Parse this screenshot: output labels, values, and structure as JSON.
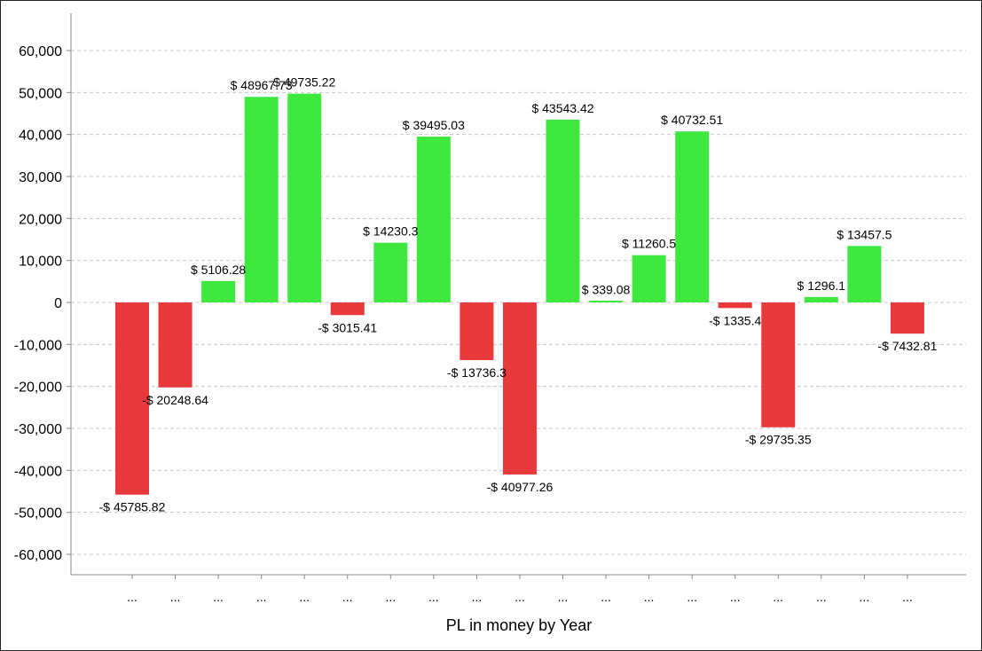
{
  "chart_data": {
    "type": "bar",
    "title": "",
    "xlabel": "PL in money by Year",
    "ylabel": "",
    "ylim": [
      -65000,
      67000
    ],
    "yticks": [
      60000,
      50000,
      40000,
      30000,
      20000,
      10000,
      0,
      -10000,
      -20000,
      -30000,
      -40000,
      -50000,
      -60000
    ],
    "ytick_labels": [
      "60,000",
      "50,000",
      "40,000",
      "30,000",
      "20,000",
      "10,000",
      "0",
      "-10,000",
      "-20,000",
      "-30,000",
      "-40,000",
      "-50,000",
      "-60,000"
    ],
    "grid": true,
    "colors": {
      "positive": "#3fe83f",
      "negative": "#e8393c"
    },
    "categories": [
      "...",
      "...",
      "...",
      "...",
      "...",
      "...",
      "...",
      "...",
      "...",
      "...",
      "...",
      "...",
      "...",
      "...",
      "...",
      "...",
      "...",
      "...",
      "..."
    ],
    "values": [
      -45785.82,
      -20248.64,
      5106.28,
      48967.73,
      49735.22,
      -3015.41,
      14230.3,
      39495.03,
      -13736.3,
      -40977.26,
      43543.42,
      339.08,
      11260.5,
      40732.51,
      -1335.4,
      -29735.35,
      1296.1,
      13457.5,
      -7432.81
    ],
    "data_labels": [
      "-$ 45785.82",
      "-$ 20248.64",
      "$ 5106.28",
      "$ 48967.73",
      "$ 49735.22",
      "-$ 3015.41",
      "$ 14230.3",
      "$ 39495.03",
      "-$ 13736.3",
      "-$ 40977.26",
      "$ 43543.42",
      "$ 339.08",
      "$ 11260.5",
      "$ 40732.51",
      "-$ 1335.4",
      "-$ 29735.35",
      "$ 1296.1",
      "$ 13457.5",
      "-$ 7432.81"
    ]
  }
}
